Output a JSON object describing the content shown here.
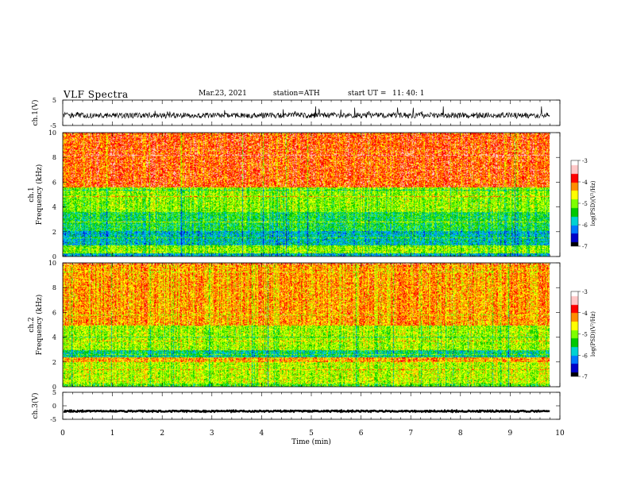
{
  "header": {
    "title": "VLF  Spectra",
    "date": "Mar.23, 2021",
    "station": "station=ATH",
    "start_label": "start  UT  =",
    "start_time": "11: 40: 1"
  },
  "colors": {
    "colormap": [
      "#000000",
      "#0000c8",
      "#0078ff",
      "#00d2d2",
      "#00c800",
      "#7dff00",
      "#ffff00",
      "#ff8c00",
      "#ff0000",
      "#ffc8c8",
      "#ffffff"
    ]
  },
  "chart_data": [
    {
      "type": "line",
      "name": "ch1-waveform",
      "ylabel": "ch.1(V)",
      "ylim": [
        -5,
        5
      ],
      "yticks": [
        "5",
        "-5"
      ],
      "xlim": [
        0,
        10
      ],
      "description_values": {
        "baseline": -1.0,
        "noise_range": [
          -4.0,
          2.5
        ],
        "duration_min": 9.8
      }
    },
    {
      "type": "heatmap",
      "name": "ch1-spectrogram",
      "ylabel": "ch.1\nFrequency (kHz)",
      "ylabel_lines": [
        "ch.1",
        "Frequency  (kHz)"
      ],
      "ylim": [
        0,
        10
      ],
      "yticks": [
        "0",
        "2",
        "4",
        "6",
        "8",
        "10"
      ],
      "xlim": [
        0,
        10
      ],
      "data_extent_min": 9.8,
      "colorbar": {
        "label": "log(PSD)(V²/Hz)",
        "ticks": [
          "-3",
          "-4",
          "-5",
          "-6",
          "-7"
        ],
        "range": [
          -7,
          -3
        ]
      },
      "bands_khz": [
        {
          "from": 0.0,
          "to": 0.3,
          "level": -6.0
        },
        {
          "from": 0.3,
          "to": 0.9,
          "level": -5.0
        },
        {
          "from": 0.9,
          "to": 2.0,
          "level": -5.9
        },
        {
          "from": 2.0,
          "to": 3.6,
          "level": -5.5
        },
        {
          "from": 3.6,
          "to": 5.6,
          "level": -5.0
        },
        {
          "from": 5.6,
          "to": 10.0,
          "level": -3.9
        }
      ]
    },
    {
      "type": "heatmap",
      "name": "ch2-spectrogram",
      "ylabel_lines": [
        "ch.2",
        "Frequency  (kHz)"
      ],
      "ylim": [
        0,
        10
      ],
      "yticks": [
        "0",
        "2",
        "4",
        "6",
        "8",
        "10"
      ],
      "xlim": [
        0,
        10
      ],
      "data_extent_min": 9.8,
      "colorbar": {
        "label": "log(PSD)(V²/Hz)",
        "ticks": [
          "-3",
          "-4",
          "-5",
          "-6",
          "-7"
        ],
        "range": [
          -7,
          -3
        ]
      },
      "bands_khz": [
        {
          "from": 0.0,
          "to": 0.3,
          "level": -5.2
        },
        {
          "from": 0.3,
          "to": 2.0,
          "level": -4.8
        },
        {
          "from": 2.0,
          "to": 2.4,
          "level": -4.2
        },
        {
          "from": 2.4,
          "to": 3.0,
          "level": -5.7
        },
        {
          "from": 3.0,
          "to": 5.0,
          "level": -4.9
        },
        {
          "from": 5.0,
          "to": 10.0,
          "level": -4.2
        }
      ]
    },
    {
      "type": "line",
      "name": "ch3-waveform",
      "ylabel": "ch.3(V)",
      "ylim": [
        -5,
        5
      ],
      "yticks": [
        "5",
        "0",
        "-5"
      ],
      "xlim": [
        0,
        10
      ],
      "xlabel": "Time  (min)",
      "xticks": [
        "0",
        "1",
        "2",
        "3",
        "4",
        "5",
        "6",
        "7",
        "8",
        "9",
        "10"
      ],
      "description_values": {
        "baseline": -2.0,
        "duration_min": 9.8
      }
    }
  ]
}
